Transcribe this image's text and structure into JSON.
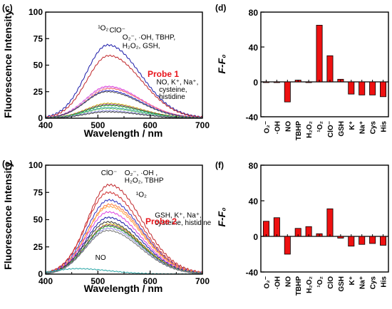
{
  "chart_data": [
    {
      "panel": "(c)",
      "type": "line",
      "xlabel": "Wavelength / nm",
      "ylabel": "Fluorescence Intensity",
      "xlim": [
        400,
        700
      ],
      "ylim": [
        0,
        100
      ],
      "xticks": [
        400,
        500,
        600,
        700
      ],
      "yticks": [
        0,
        25,
        50,
        75,
        100
      ],
      "ytick_labels": [
        "0",
        "25",
        "50",
        "75",
        "100"
      ],
      "annotations": [
        {
          "text": "¹O₂",
          "x": 500,
          "y": 83
        },
        {
          "text": "ClO⁻",
          "x": 522,
          "y": 81
        },
        {
          "text": "O₂⁻, ·OH, TBHP,",
          "x": 547,
          "y": 74
        },
        {
          "text": "H₂O₂, GSH,",
          "x": 547,
          "y": 66
        },
        {
          "text": "NO, K⁺, Na⁺,",
          "x": 612,
          "y": 32
        },
        {
          "text": "cysteine,",
          "x": 617,
          "y": 25
        },
        {
          "text": "histidine",
          "x": 617,
          "y": 18
        }
      ],
      "probe_label": "Probe 1",
      "series": [
        {
          "color": "#1a1aa8",
          "peak": 519,
          "values": [
            69
          ]
        },
        {
          "color": "#c0262a",
          "peak": 521,
          "values": [
            59
          ]
        },
        {
          "color": "#e040e0",
          "peak": 519,
          "values": [
            30
          ]
        },
        {
          "color": "#d8a0e0",
          "peak": 519,
          "values": [
            29
          ]
        },
        {
          "color": "#ff7070",
          "peak": 521,
          "values": [
            28
          ]
        },
        {
          "color": "#3030d0",
          "peak": 519,
          "values": [
            26
          ]
        },
        {
          "color": "#505050",
          "peak": 518,
          "values": [
            25
          ]
        },
        {
          "color": "#c8b000",
          "peak": 520,
          "values": [
            14
          ]
        },
        {
          "color": "#8a3a8a",
          "peak": 520,
          "values": [
            13
          ]
        },
        {
          "color": "#1a9a1a",
          "peak": 520,
          "values": [
            12
          ]
        },
        {
          "color": "#2aa6a6",
          "peak": 519,
          "values": [
            10
          ]
        },
        {
          "color": "#70c070",
          "peak": 518,
          "values": [
            9
          ]
        },
        {
          "color": "#9090e0",
          "peak": 518,
          "values": [
            7
          ]
        },
        {
          "color": "#404040",
          "peak": 518,
          "values": [
            6
          ]
        }
      ]
    },
    {
      "panel": "(d)",
      "type": "bar",
      "ylabel": "F-F₀",
      "ylim": [
        -40,
        80
      ],
      "yticks": [
        -40,
        0,
        40,
        80
      ],
      "categories": [
        "O₂⁻",
        "·OH",
        "NO",
        "TBHP",
        "H₂O₂",
        "¹O₂",
        "ClO⁻",
        "GSH",
        "K⁺",
        "Na⁺",
        "Cys",
        "His"
      ],
      "values": [
        0,
        0,
        -23,
        2,
        0,
        65,
        30,
        3,
        -14,
        -15,
        -15,
        -17
      ],
      "bar_color": "#ee1111"
    },
    {
      "panel": "(e)",
      "type": "line",
      "xlabel": "Wavelength / nm",
      "ylabel": "Fluorescence Intensity",
      "xlim": [
        400,
        700
      ],
      "ylim": [
        0,
        100
      ],
      "xticks": [
        400,
        500,
        600,
        700
      ],
      "yticks": [
        0,
        25,
        50,
        75,
        100
      ],
      "ytick_labels": [
        "0",
        "25",
        "50",
        "75",
        "100"
      ],
      "annotations": [
        {
          "text": "ClO⁻",
          "x": 506,
          "y": 91
        },
        {
          "text": "O₂⁻, ·OH ,",
          "x": 551,
          "y": 91
        },
        {
          "text": "H₂O₂, TBHP",
          "x": 551,
          "y": 84
        },
        {
          "text": "¹O₂",
          "x": 573,
          "y": 71
        },
        {
          "text": "GSH, K⁺, Na⁺,",
          "x": 609,
          "y": 52
        },
        {
          "text": "cysteine, histidine",
          "x": 609,
          "y": 45
        },
        {
          "text": "NO",
          "x": 495,
          "y": 13
        }
      ],
      "probe_label": "Probe 2",
      "series": [
        {
          "color": "#c0262a",
          "peak": 522,
          "values": [
            82
          ]
        },
        {
          "color": "#d03030",
          "peak": 520,
          "values": [
            75
          ]
        },
        {
          "color": "#3030c0",
          "peak": 521,
          "values": [
            68
          ]
        },
        {
          "color": "#ff8040",
          "peak": 522,
          "values": [
            64
          ]
        },
        {
          "color": "#ffa040",
          "peak": 521,
          "values": [
            62
          ]
        },
        {
          "color": "#e040e0",
          "peak": 520,
          "values": [
            57
          ]
        },
        {
          "color": "#1a1aa8",
          "peak": 520,
          "values": [
            52
          ]
        },
        {
          "color": "#303030",
          "peak": 519,
          "values": [
            48
          ]
        },
        {
          "color": "#c8b000",
          "peak": 521,
          "values": [
            46
          ]
        },
        {
          "color": "#8a3a8a",
          "peak": 520,
          "values": [
            45
          ]
        },
        {
          "color": "#1a9a1a",
          "peak": 520,
          "values": [
            44
          ]
        },
        {
          "color": "#9090e0",
          "peak": 520,
          "values": [
            42
          ]
        },
        {
          "color": "#707070",
          "peak": 519,
          "values": [
            40
          ]
        },
        {
          "color": "#2aa6a6",
          "peak": 460,
          "values": [
            5
          ]
        }
      ]
    },
    {
      "panel": "(f)",
      "type": "bar",
      "ylabel": "F-F₀",
      "ylim": [
        -40,
        80
      ],
      "yticks": [
        -40,
        0,
        40,
        80
      ],
      "categories": [
        "O₂⁻",
        "·OH",
        "NO",
        "TBHP",
        "H₂O₂",
        "¹O₂",
        "ClO",
        "GSH",
        "K⁺",
        "Na⁺",
        "Cys",
        "His"
      ],
      "values": [
        17,
        21,
        -20,
        9,
        11,
        3,
        31,
        -2,
        -11,
        -9,
        -8,
        -10
      ],
      "bar_color": "#ee1111"
    }
  ]
}
